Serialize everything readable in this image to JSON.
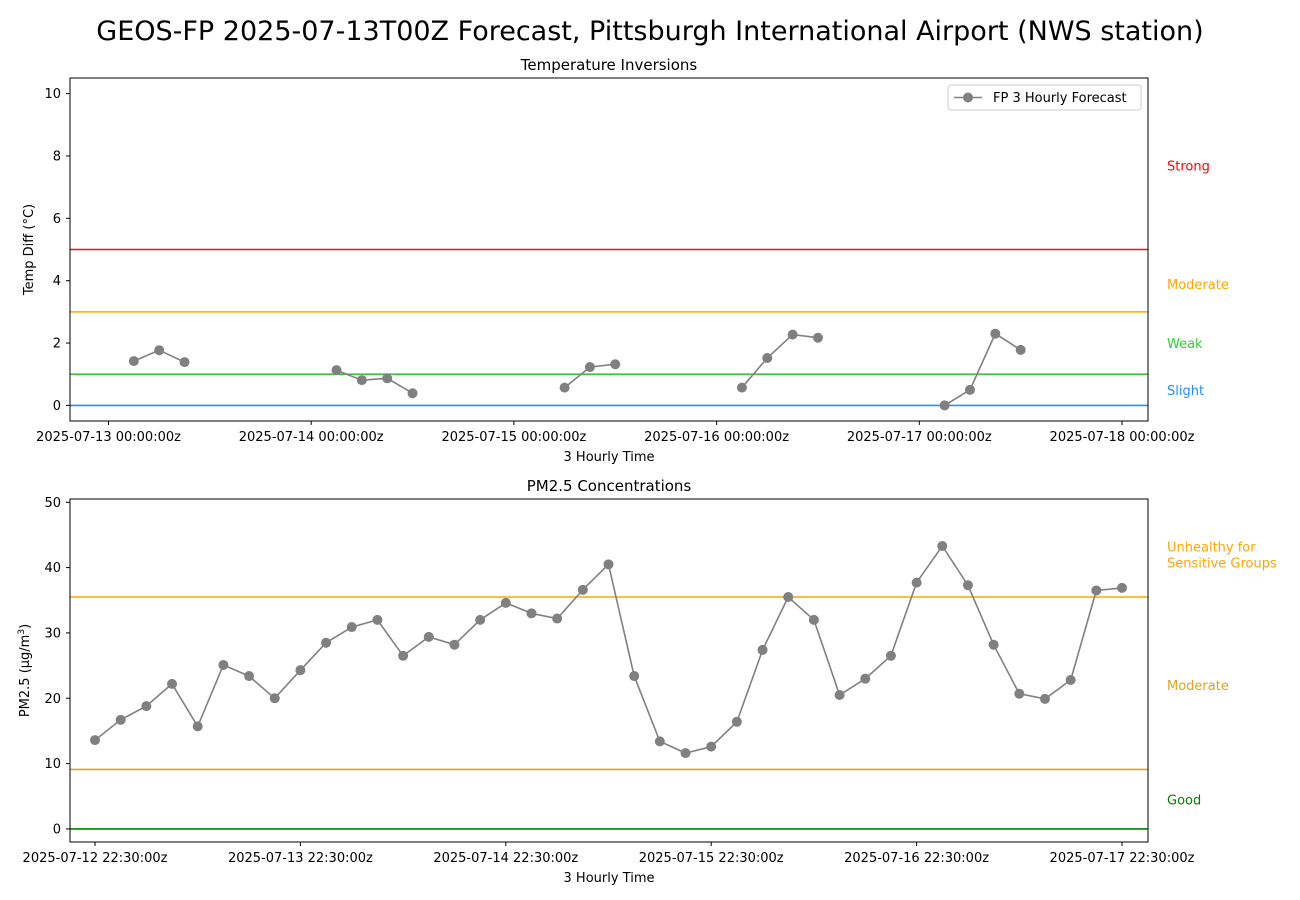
{
  "figure": {
    "suptitle": "GEOS-FP 2025-07-13T00Z Forecast, Pittsburgh International Airport (NWS station)"
  },
  "chart_data": [
    {
      "type": "line",
      "title": "Temperature Inversions",
      "xlabel": "3 Hourly Time",
      "ylabel": "Temp Diff (°C)",
      "ylim": [
        -0.5,
        10.5
      ],
      "yticks": [
        0,
        2,
        4,
        6,
        8,
        10
      ],
      "xticks": [
        "2025-07-13 00:00:00z",
        "2025-07-14 00:00:00z",
        "2025-07-15 00:00:00z",
        "2025-07-16 00:00:00z",
        "2025-07-17 00:00:00z",
        "2025-07-18 00:00:00z"
      ],
      "legend": {
        "location": "top-right",
        "entries": [
          "FP 3 Hourly Forecast"
        ]
      },
      "series": [
        {
          "name": "FP 3 Hourly Forecast",
          "color": "#808080",
          "points": [
            [
              "2025-07-13 03:00",
              1.42
            ],
            [
              "2025-07-13 06:00",
              1.77
            ],
            [
              "2025-07-13 09:00",
              1.39
            ],
            [
              "2025-07-13 12:00",
              null
            ],
            [
              "2025-07-14 03:00",
              1.13
            ],
            [
              "2025-07-14 06:00",
              0.81
            ],
            [
              "2025-07-14 09:00",
              0.87
            ],
            [
              "2025-07-14 12:00",
              0.39
            ],
            [
              "2025-07-14 15:00",
              null
            ],
            [
              "2025-07-15 06:00",
              0.57
            ],
            [
              "2025-07-15 09:00",
              1.23
            ],
            [
              "2025-07-15 12:00",
              1.32
            ],
            [
              "2025-07-15 15:00",
              null
            ],
            [
              "2025-07-16 03:00",
              0.57
            ],
            [
              "2025-07-16 06:00",
              1.52
            ],
            [
              "2025-07-16 09:00",
              2.27
            ],
            [
              "2025-07-16 12:00",
              2.17
            ],
            [
              "2025-07-16 15:00",
              null
            ],
            [
              "2025-07-17 03:00",
              0.0
            ],
            [
              "2025-07-17 06:00",
              0.5
            ],
            [
              "2025-07-17 09:00",
              2.3
            ],
            [
              "2025-07-17 12:00",
              1.78
            ]
          ]
        }
      ],
      "thresholds": [
        {
          "value": 5,
          "color": "#e8141e"
        },
        {
          "value": 3,
          "color": "#ffa500"
        },
        {
          "value": 1,
          "color": "#32cd32"
        },
        {
          "value": 0,
          "color": "#1e90ff"
        }
      ],
      "bands": [
        {
          "label": "Strong",
          "value": 7.7,
          "color": "#ff0000"
        },
        {
          "label": "Moderate",
          "value": 3.9,
          "color": "#ffa500"
        },
        {
          "label": "Weak",
          "value": 2.0,
          "color": "#32cd32"
        },
        {
          "label": "Slight",
          "value": 0.5,
          "color": "#1e90ff"
        }
      ]
    },
    {
      "type": "line",
      "title": "PM2.5 Concentrations",
      "xlabel": "3 Hourly Time",
      "ylabel": "PM2.5 (μg/m",
      "ylabel_sup": "3",
      "ylabel_close": ")",
      "ylim": [
        -2,
        50.5
      ],
      "yticks": [
        0,
        10,
        20,
        30,
        40,
        50
      ],
      "xticks": [
        "2025-07-12 22:30:00z",
        "2025-07-13 22:30:00z",
        "2025-07-14 22:30:00z",
        "2025-07-15 22:30:00z",
        "2025-07-16 22:30:00z",
        "2025-07-17 22:30:00z"
      ],
      "series": [
        {
          "color": "#808080",
          "points": [
            [
              "2025-07-12 22:30",
              13.6
            ],
            [
              "2025-07-13 01:30",
              16.7
            ],
            [
              "2025-07-13 04:30",
              18.8
            ],
            [
              "2025-07-13 07:30",
              22.2
            ],
            [
              "2025-07-13 10:30",
              15.7
            ],
            [
              "2025-07-13 13:30",
              25.1
            ],
            [
              "2025-07-13 16:30",
              23.4
            ],
            [
              "2025-07-13 19:30",
              20.0
            ],
            [
              "2025-07-13 22:30",
              24.3
            ],
            [
              "2025-07-14 01:30",
              28.5
            ],
            [
              "2025-07-14 04:30",
              30.9
            ],
            [
              "2025-07-14 07:30",
              32.0
            ],
            [
              "2025-07-14 10:30",
              26.5
            ],
            [
              "2025-07-14 13:30",
              29.4
            ],
            [
              "2025-07-14 16:30",
              28.2
            ],
            [
              "2025-07-14 19:30",
              32.0
            ],
            [
              "2025-07-14 22:30",
              34.6
            ],
            [
              "2025-07-15 01:30",
              33.0
            ],
            [
              "2025-07-15 04:30",
              32.2
            ],
            [
              "2025-07-15 07:30",
              36.6
            ],
            [
              "2025-07-15 10:30",
              40.5
            ],
            [
              "2025-07-15 13:30",
              23.4
            ],
            [
              "2025-07-15 16:30",
              13.4
            ],
            [
              "2025-07-15 19:30",
              11.6
            ],
            [
              "2025-07-15 22:30",
              12.6
            ],
            [
              "2025-07-16 01:30",
              16.4
            ],
            [
              "2025-07-16 04:30",
              27.4
            ],
            [
              "2025-07-16 07:30",
              35.5
            ],
            [
              "2025-07-16 10:30",
              32.0
            ],
            [
              "2025-07-16 13:30",
              20.5
            ],
            [
              "2025-07-16 16:30",
              23.0
            ],
            [
              "2025-07-16 19:30",
              26.5
            ],
            [
              "2025-07-16 22:30",
              37.7
            ],
            [
              "2025-07-17 01:30",
              43.3
            ],
            [
              "2025-07-17 04:30",
              37.3
            ],
            [
              "2025-07-17 07:30",
              28.2
            ],
            [
              "2025-07-17 10:30",
              20.7
            ],
            [
              "2025-07-17 13:30",
              19.9
            ],
            [
              "2025-07-17 16:30",
              22.8
            ],
            [
              "2025-07-17 19:30",
              36.5
            ],
            [
              "2025-07-17 22:30",
              36.9
            ]
          ]
        }
      ],
      "thresholds": [
        {
          "value": 35.5,
          "color": "#ffa500"
        },
        {
          "value": 9.1,
          "color": "#daa520"
        },
        {
          "value": 0,
          "color": "#008000"
        }
      ],
      "bands": [
        {
          "label": "Unhealthy for",
          "label2": "Sensitive Groups",
          "value": 43.2,
          "color": "#ffa500"
        },
        {
          "label": "Moderate",
          "value": 22.0,
          "color": "#daa520"
        },
        {
          "label": "Good",
          "value": 4.5,
          "color": "#008000"
        }
      ]
    }
  ]
}
